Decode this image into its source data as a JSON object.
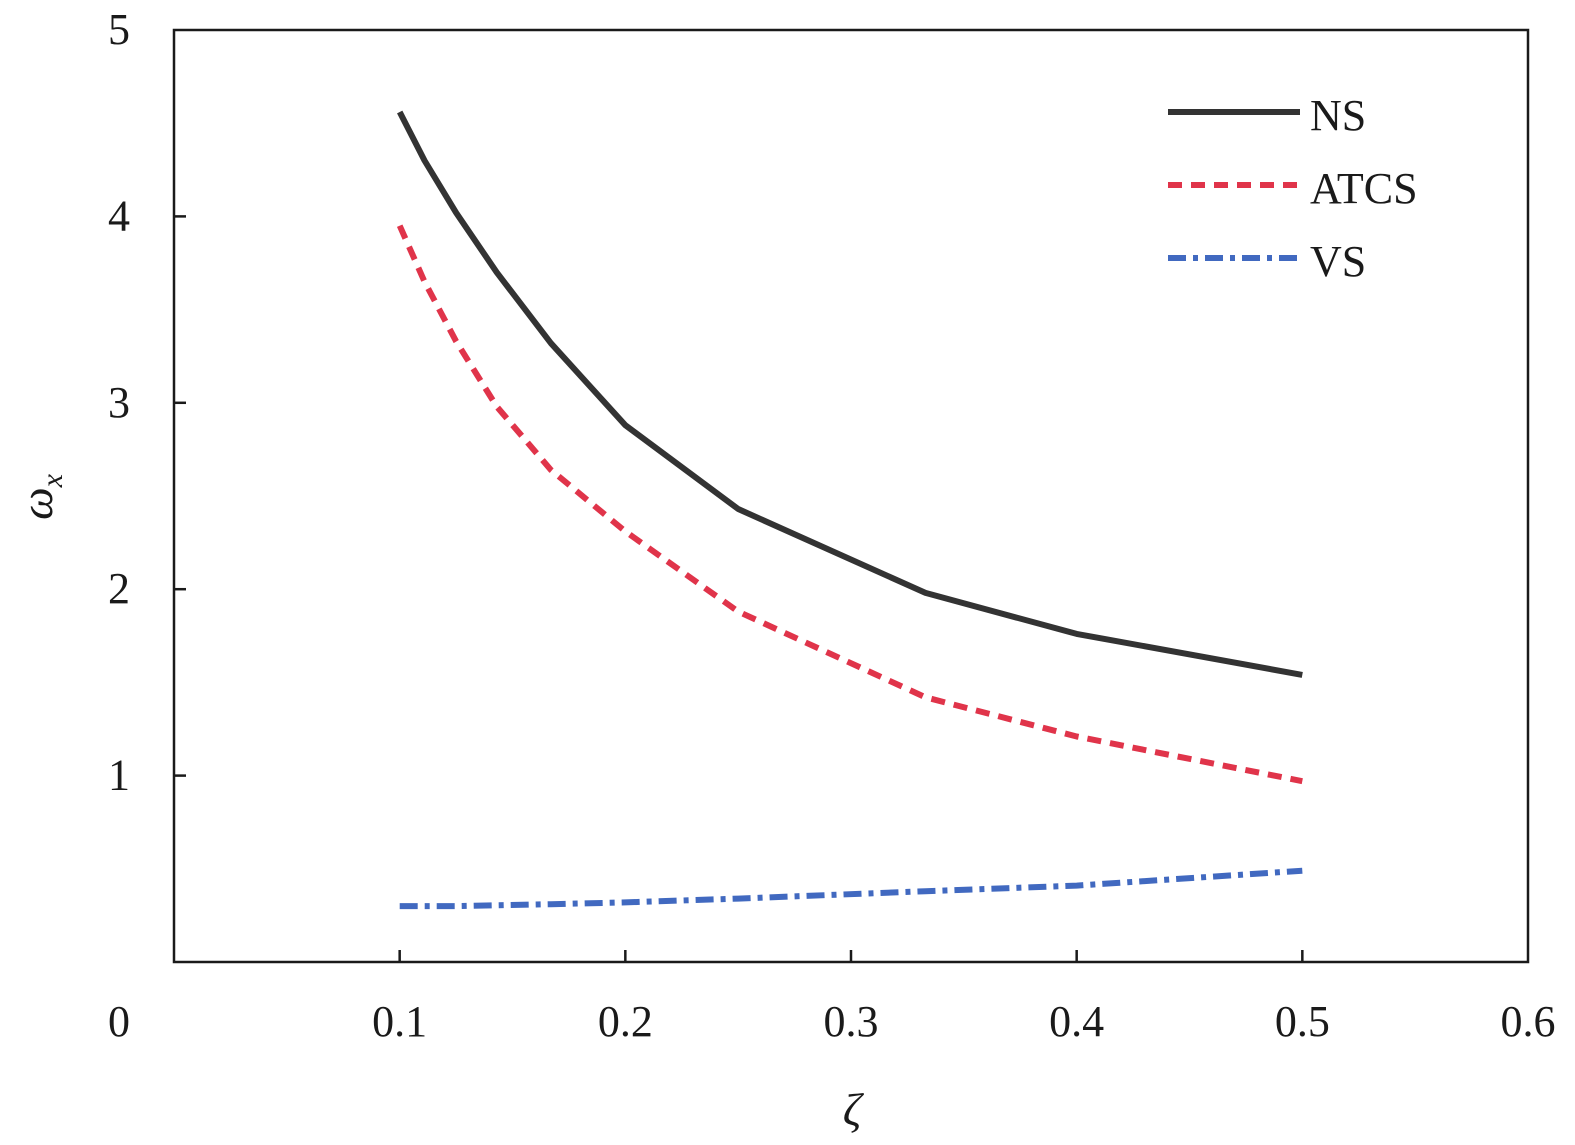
{
  "chart_data": {
    "type": "line",
    "title": "",
    "xlabel": "ζ",
    "ylabel": "ω",
    "ylabel_subscript": "x",
    "xlim": [
      0,
      0.6
    ],
    "ylim": [
      0,
      5
    ],
    "x_ticks": [
      0,
      0.1,
      0.2,
      0.3,
      0.4,
      0.5,
      0.6
    ],
    "x_tick_labels": [
      "0",
      "0.1",
      "0.2",
      "0.3",
      "0.4",
      "0.5",
      "0.6"
    ],
    "y_ticks": [
      1,
      2,
      3,
      4,
      5
    ],
    "y_tick_labels": [
      "1",
      "2",
      "3",
      "4",
      "5"
    ],
    "grid": false,
    "legend_position": "top-right",
    "series": [
      {
        "name": "NS",
        "color": "#333333",
        "style": "solid",
        "x": [
          0.1,
          0.111,
          0.125,
          0.143,
          0.167,
          0.2,
          0.25,
          0.333,
          0.4,
          0.5
        ],
        "values": [
          4.56,
          4.3,
          4.02,
          3.7,
          3.32,
          2.88,
          2.43,
          1.98,
          1.76,
          1.54
        ]
      },
      {
        "name": "ATCS",
        "color": "#e0344a",
        "style": "dashed",
        "x": [
          0.1,
          0.111,
          0.125,
          0.143,
          0.167,
          0.2,
          0.25,
          0.333,
          0.4,
          0.5
        ],
        "values": [
          3.95,
          3.65,
          3.33,
          2.98,
          2.64,
          2.31,
          1.88,
          1.42,
          1.21,
          0.97
        ]
      },
      {
        "name": "VS",
        "color": "#4169c0",
        "style": "dashdot",
        "x": [
          0.1,
          0.125,
          0.167,
          0.2,
          0.25,
          0.333,
          0.4,
          0.5
        ],
        "values": [
          0.3,
          0.3,
          0.31,
          0.32,
          0.34,
          0.38,
          0.41,
          0.49
        ]
      }
    ]
  }
}
